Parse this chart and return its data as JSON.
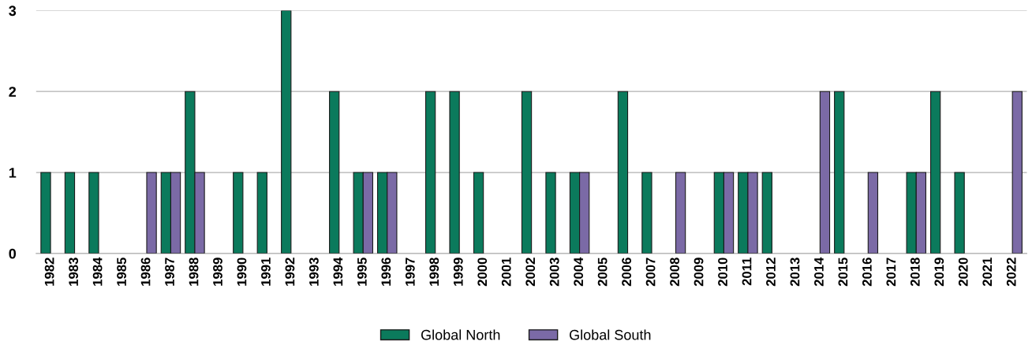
{
  "chart_data": {
    "type": "bar",
    "categories": [
      "1982",
      "1983",
      "1984",
      "1985",
      "1986",
      "1987",
      "1988",
      "1989",
      "1990",
      "1991",
      "1992",
      "1993",
      "1994",
      "1995",
      "1996",
      "1997",
      "1998",
      "1999",
      "2000",
      "2001",
      "2002",
      "2003",
      "2004",
      "2005",
      "2006",
      "2007",
      "2008",
      "2009",
      "2010",
      "2011",
      "2012",
      "2013",
      "2014",
      "2015",
      "2016",
      "2017",
      "2018",
      "2019",
      "2020",
      "2021",
      "2022"
    ],
    "series": [
      {
        "name": "Global North",
        "color": "#0b7a5c",
        "values": [
          1,
          1,
          1,
          0,
          0,
          1,
          2,
          0,
          1,
          1,
          3,
          0,
          2,
          1,
          1,
          0,
          2,
          2,
          1,
          0,
          2,
          1,
          1,
          0,
          2,
          1,
          0,
          0,
          1,
          1,
          1,
          0,
          0,
          2,
          0,
          0,
          1,
          2,
          1,
          0,
          0
        ]
      },
      {
        "name": "Global South",
        "color": "#7b6aa6",
        "values": [
          0,
          0,
          0,
          0,
          1,
          1,
          1,
          0,
          0,
          0,
          0,
          0,
          0,
          1,
          1,
          0,
          0,
          0,
          0,
          0,
          0,
          0,
          1,
          0,
          0,
          0,
          1,
          0,
          1,
          1,
          0,
          0,
          2,
          0,
          1,
          0,
          1,
          0,
          0,
          0,
          2
        ]
      }
    ],
    "ylim": [
      0,
      3
    ],
    "yticks": [
      0,
      1,
      2,
      3
    ],
    "grid": "y",
    "legend": "bottom"
  }
}
